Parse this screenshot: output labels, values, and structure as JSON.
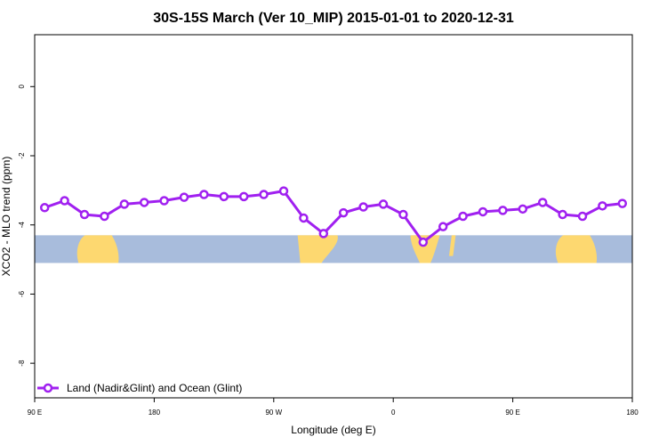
{
  "chart_data": {
    "type": "line",
    "title": "30S-15S March (Ver 10_MIP)   2015-01-01 to 2020-12-31",
    "xlabel": "Longitude (deg E)",
    "ylabel": "XCO2 - MLO trend (ppm)",
    "xlim": [
      90,
      540
    ],
    "ylim": [
      -9.0,
      1.5
    ],
    "x_ticks": [
      {
        "value": 90,
        "label": "90 E"
      },
      {
        "value": 180,
        "label": "180"
      },
      {
        "value": 270,
        "label": "90 W"
      },
      {
        "value": 360,
        "label": "0"
      },
      {
        "value": 450,
        "label": "90 E"
      },
      {
        "value": 540,
        "label": "180"
      }
    ],
    "y_ticks": [
      {
        "value": 0,
        "label": "0"
      },
      {
        "value": -2,
        "label": "-2"
      },
      {
        "value": -4,
        "label": "-4"
      },
      {
        "value": -6,
        "label": "-6"
      },
      {
        "value": -8,
        "label": "-8"
      }
    ],
    "series": [
      {
        "name": "Land (Nadir&Glint) and Ocean (Glint)",
        "color": "#a020f0",
        "x": [
          97.5,
          112.5,
          127.5,
          142.5,
          157.5,
          172.5,
          187.5,
          202.5,
          217.5,
          232.5,
          247.5,
          262.5,
          277.5,
          292.5,
          307.5,
          322.5,
          337.5,
          352.5,
          367.5,
          382.5,
          397.5,
          412.5,
          427.5,
          442.5,
          457.5,
          472.5,
          487.5,
          502.5,
          517.5,
          532.5
        ],
        "y": [
          -3.5,
          -3.3,
          -3.7,
          -3.75,
          -3.4,
          -3.35,
          -3.3,
          -3.2,
          -3.12,
          -3.18,
          -3.18,
          -3.12,
          -3.02,
          -3.8,
          -4.25,
          -3.65,
          -3.48,
          -3.4,
          -3.7,
          -4.5,
          -4.05,
          -3.75,
          -3.62,
          -3.58,
          -3.54,
          -3.35,
          -3.7,
          -3.75,
          -3.45,
          -3.38
        ]
      }
    ],
    "legend": {
      "position": "bottom-left",
      "label": "Land (Nadir&Glint) and Ocean (Glint)"
    },
    "grid": false,
    "background_map": {
      "band_y": [
        -4.3,
        -5.1
      ],
      "ocean_color": "#a8bcdc",
      "land_color": "#fdd870"
    }
  }
}
